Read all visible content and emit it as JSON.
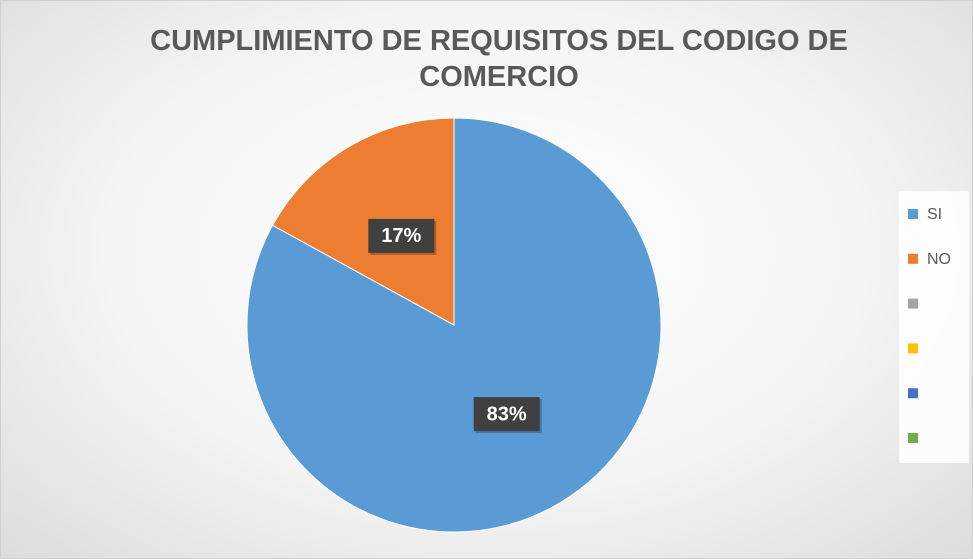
{
  "chart_data": {
    "type": "pie",
    "title": "CUMPLIMIENTO DE REQUISITOS DEL CODIGO DE COMERCIO",
    "categories": [
      "SI",
      "NO",
      null,
      null,
      null,
      null
    ],
    "values": [
      83,
      17,
      0,
      0,
      0,
      0
    ],
    "value_labels": [
      "83%",
      "17%",
      null,
      null,
      null,
      null
    ],
    "colors": [
      "#5b9bd5",
      "#ed7d31",
      "#a5a5a5",
      "#ffc000",
      "#4472c4",
      "#70ad47"
    ],
    "legend": "right"
  }
}
